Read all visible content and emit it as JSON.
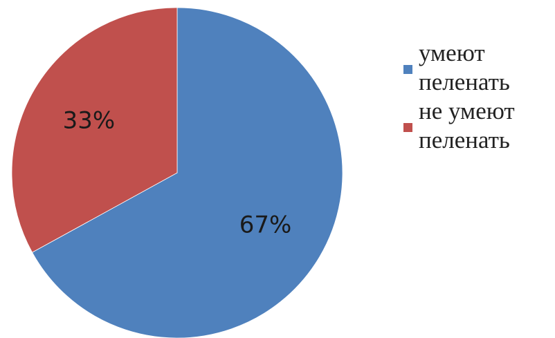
{
  "chart_data": {
    "type": "pie",
    "start_angle_deg": 0,
    "direction": "clockwise",
    "slices": [
      {
        "label": "умеют пеленать",
        "value": 67,
        "display": "67%",
        "color": "#4f81bd"
      },
      {
        "label": "не умеют пеленать",
        "value": 33,
        "display": "33%",
        "color": "#c0504d"
      }
    ],
    "legend": {
      "placement": "right",
      "entries": [
        "умеют пеленать",
        "не умеют пеленать"
      ]
    }
  }
}
